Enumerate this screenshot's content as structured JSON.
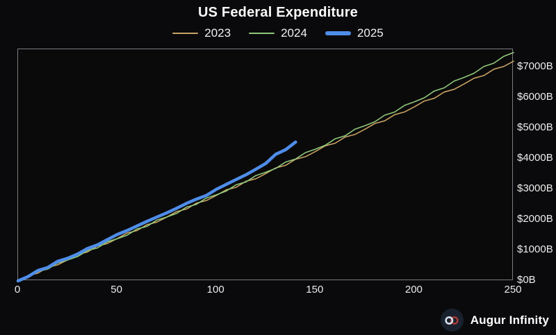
{
  "title": "US Federal Expenditure",
  "brand": {
    "label": "Augur Infinity",
    "logo_icon": "infinity-icon"
  },
  "chart_data": {
    "type": "line",
    "title": "US Federal Expenditure",
    "xlabel": "",
    "ylabel": "",
    "xlim": [
      0,
      250
    ],
    "ylim": [
      0,
      7590
    ],
    "grid": false,
    "legend_position": "top-center",
    "background": "#0a0a0c",
    "x_ticks": {
      "values": [
        0,
        50,
        100,
        150,
        200,
        250
      ],
      "labels": [
        "0",
        "50",
        "100",
        "150",
        "200",
        "250"
      ]
    },
    "y_ticks": {
      "values": [
        0,
        1000,
        2000,
        3000,
        4000,
        5000,
        6000,
        7000
      ],
      "labels": [
        "$0B",
        "$1000B",
        "$2000B",
        "$3000B",
        "$4000B",
        "$5000B",
        "$6000B",
        "$7000B"
      ]
    },
    "series": [
      {
        "name": "2023",
        "color": "#c8a264",
        "width": 1.6,
        "x": [
          0,
          5,
          10,
          15,
          20,
          25,
          30,
          35,
          40,
          45,
          50,
          55,
          60,
          65,
          70,
          75,
          80,
          85,
          90,
          95,
          100,
          105,
          110,
          115,
          120,
          125,
          130,
          135,
          140,
          145,
          150,
          155,
          160,
          165,
          170,
          175,
          180,
          185,
          190,
          195,
          200,
          205,
          210,
          215,
          220,
          225,
          230,
          235,
          240,
          245,
          250
        ],
        "y": [
          0,
          177,
          255,
          448,
          526,
          690,
          869,
          948,
          1142,
          1222,
          1387,
          1567,
          1647,
          1843,
          1924,
          2090,
          2272,
          2354,
          2550,
          2633,
          2800,
          2983,
          3066,
          3265,
          3348,
          3517,
          3701,
          3785,
          3985,
          4070,
          4241,
          4426,
          4511,
          4713,
          4799,
          4970,
          5158,
          5244,
          5446,
          5535,
          5707,
          5895,
          5984,
          6187,
          6276,
          6451,
          6640,
          6729,
          6935,
          7025,
          7200
        ]
      },
      {
        "name": "2024",
        "color": "#90c87a",
        "width": 1.6,
        "x": [
          0,
          5,
          10,
          15,
          20,
          25,
          30,
          35,
          40,
          45,
          50,
          55,
          60,
          65,
          70,
          75,
          80,
          85,
          90,
          95,
          100,
          105,
          110,
          115,
          120,
          125,
          130,
          135,
          140,
          145,
          150,
          155,
          160,
          165,
          170,
          175,
          180,
          185,
          190,
          195,
          200,
          205,
          210,
          215,
          220,
          225,
          230,
          235,
          240,
          245,
          250
        ],
        "y": [
          0,
          110,
          307,
          389,
          586,
          683,
          797,
          996,
          1080,
          1280,
          1382,
          1498,
          1699,
          1787,
          1990,
          2094,
          2212,
          2417,
          2508,
          2714,
          2820,
          2942,
          3150,
          3243,
          3451,
          3560,
          3686,
          3896,
          3992,
          4203,
          4316,
          4444,
          4657,
          4755,
          4971,
          5085,
          5216,
          5432,
          5534,
          5751,
          5869,
          6002,
          6222,
          6326,
          6546,
          6667,
          6804,
          7025,
          7133,
          7356,
          7480
        ]
      },
      {
        "name": "2025",
        "color": "#4f8de8",
        "width": 4.5,
        "x": [
          0,
          5,
          10,
          15,
          20,
          25,
          30,
          35,
          40,
          45,
          50,
          55,
          60,
          65,
          70,
          75,
          80,
          85,
          90,
          95,
          100,
          105,
          110,
          115,
          120,
          125,
          130,
          135,
          140
        ],
        "y": [
          0,
          140,
          340,
          440,
          640,
          740,
          880,
          1060,
          1180,
          1350,
          1520,
          1650,
          1800,
          1950,
          2090,
          2230,
          2380,
          2540,
          2680,
          2800,
          3000,
          3160,
          3320,
          3480,
          3660,
          3850,
          4150,
          4300,
          4550
        ]
      }
    ]
  }
}
